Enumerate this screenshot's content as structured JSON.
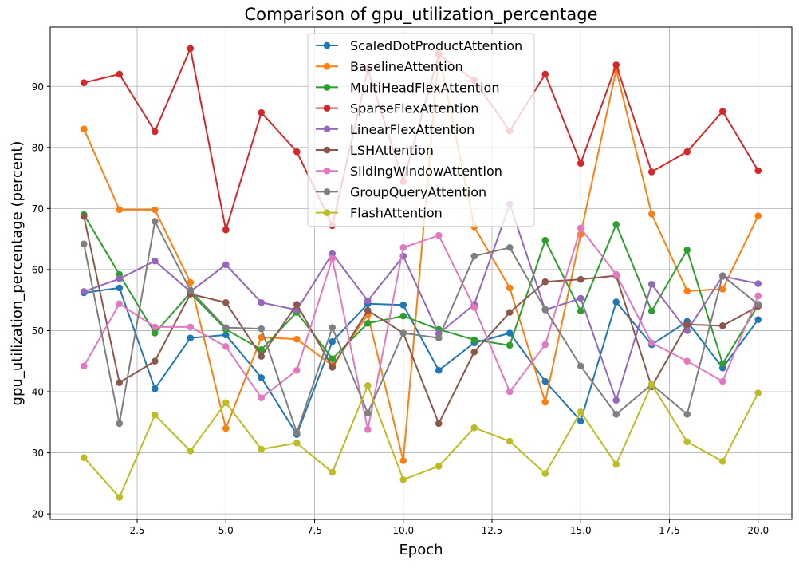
{
  "chart_data": {
    "type": "line",
    "title": "Comparison of gpu_utilization_percentage",
    "xlabel": "Epoch",
    "ylabel": "gpu_utilization_percentage (percent)",
    "xlim": [
      0.05,
      20.95
    ],
    "ylim": [
      19.1,
      99.7
    ],
    "xticks": [
      2.5,
      5.0,
      7.5,
      10.0,
      12.5,
      15.0,
      17.5,
      20.0
    ],
    "xtick_labels": [
      "2.5",
      "5.0",
      "7.5",
      "10.0",
      "12.5",
      "15.0",
      "17.5",
      "20.0"
    ],
    "yticks": [
      20,
      30,
      40,
      50,
      60,
      70,
      80,
      90
    ],
    "ytick_labels": [
      "20",
      "30",
      "40",
      "50",
      "60",
      "70",
      "80",
      "90"
    ],
    "grid": true,
    "legend_position": "top-center",
    "x": [
      1,
      2,
      3,
      4,
      5,
      6,
      7,
      8,
      9,
      10,
      11,
      12,
      13,
      14,
      15,
      16,
      17,
      18,
      19,
      20
    ],
    "series": [
      {
        "name": "ScaledDotProductAttention",
        "color": "#1f77b4",
        "values": [
          56.2,
          57.0,
          40.5,
          48.8,
          49.3,
          42.3,
          33.0,
          48.2,
          54.4,
          54.2,
          43.5,
          48.0,
          49.6,
          41.7,
          35.2,
          54.7,
          47.7,
          51.5,
          43.9,
          51.8
        ]
      },
      {
        "name": "BaselineAttention",
        "color": "#ff7f0e",
        "values": [
          83.0,
          69.8,
          69.8,
          57.9,
          34.0,
          48.9,
          48.6,
          44.3,
          52.6,
          28.7,
          95.5,
          67.0,
          57.0,
          38.3,
          65.8,
          92.7,
          69.1,
          56.5,
          56.8,
          68.8
        ]
      },
      {
        "name": "MultiHeadFlexAttention",
        "color": "#2ca02c",
        "values": [
          69.0,
          59.2,
          49.6,
          56.2,
          50.2,
          46.9,
          53.0,
          45.4,
          51.2,
          52.4,
          50.2,
          48.5,
          47.6,
          64.8,
          53.2,
          67.4,
          53.2,
          63.2,
          44.6,
          54.2
        ]
      },
      {
        "name": "SparseFlexAttention",
        "color": "#d62728",
        "values": [
          90.6,
          92.0,
          82.6,
          96.2,
          66.5,
          85.7,
          79.3,
          67.2,
          92.8,
          74.4,
          95.2,
          91.0,
          82.7,
          92.0,
          77.4,
          93.5,
          76.0,
          79.3,
          85.9,
          76.2
        ]
      },
      {
        "name": "LinearFlexAttention",
        "color": "#9467bd",
        "values": [
          56.4,
          58.5,
          61.4,
          56.4,
          60.8,
          54.6,
          53.4,
          62.6,
          54.9,
          62.2,
          49.5,
          54.3,
          70.7,
          53.4,
          55.3,
          38.6,
          57.6,
          50.0,
          58.9,
          57.7
        ]
      },
      {
        "name": "LSHAttention",
        "color": "#8c564b",
        "values": [
          68.7,
          41.5,
          45.0,
          56.0,
          54.6,
          45.8,
          54.3,
          44.0,
          53.3,
          49.6,
          34.8,
          46.5,
          53.0,
          58.0,
          58.4,
          59.0,
          40.8,
          51.0,
          50.8,
          54.0
        ]
      },
      {
        "name": "SlidingWindowAttention",
        "color": "#e377c2",
        "values": [
          44.2,
          54.4,
          50.6,
          50.6,
          47.4,
          39.0,
          43.5,
          61.8,
          33.8,
          63.6,
          65.6,
          53.8,
          40.0,
          47.7,
          66.8,
          59.2,
          48.0,
          45.0,
          41.7,
          55.7
        ]
      },
      {
        "name": "GroupQueryAttention",
        "color": "#7f7f7f",
        "values": [
          64.2,
          34.8,
          67.9,
          56.6,
          50.5,
          50.3,
          33.3,
          50.5,
          36.5,
          49.6,
          48.8,
          62.2,
          63.6,
          53.5,
          44.2,
          36.3,
          41.2,
          36.3,
          59.0,
          54.3
        ]
      },
      {
        "name": "FlashAttention",
        "color": "#bcbd22",
        "values": [
          29.2,
          22.7,
          36.2,
          30.3,
          38.2,
          30.6,
          31.6,
          26.8,
          41.0,
          25.6,
          27.8,
          34.1,
          31.9,
          26.6,
          36.7,
          28.1,
          41.2,
          31.8,
          28.6,
          39.8
        ]
      }
    ]
  }
}
